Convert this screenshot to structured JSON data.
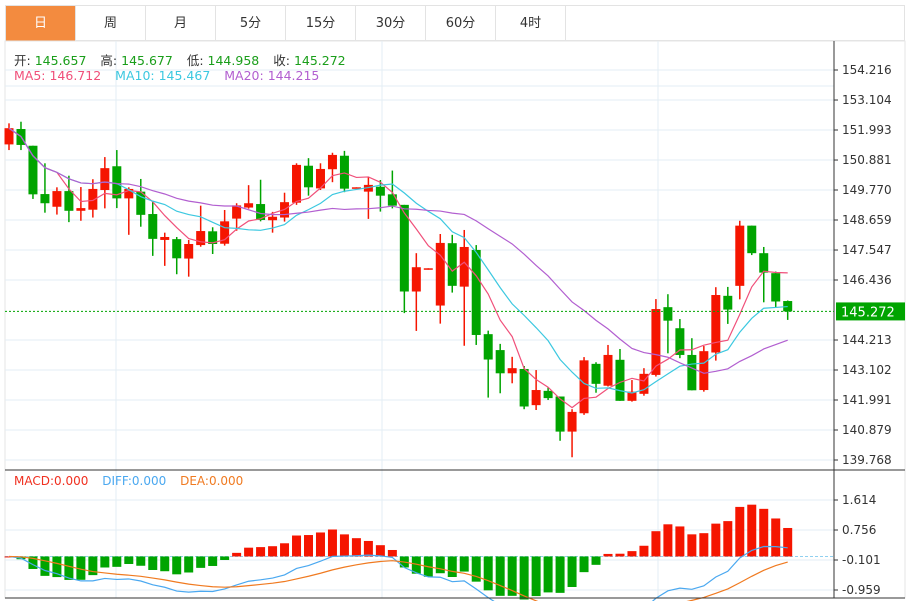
{
  "tabs": [
    {
      "label": "日",
      "active": true
    },
    {
      "label": "周"
    },
    {
      "label": "月"
    },
    {
      "label": "5分"
    },
    {
      "label": "15分"
    },
    {
      "label": "30分"
    },
    {
      "label": "60分"
    },
    {
      "label": "4时"
    }
  ],
  "ohlc_info": {
    "open_label": "开:",
    "open": "145.657",
    "high_label": "高:",
    "high": "145.677",
    "low_label": "低:",
    "low": "144.958",
    "close_label": "收:",
    "close": "145.272"
  },
  "ma_info": {
    "ma5": "MA5: 146.712",
    "ma10": "MA10: 145.467",
    "ma20": "MA20: 144.215"
  },
  "macd_info": {
    "macd": "MACD:0.000",
    "diff": "DIFF:0.000",
    "dea": "DEA:0.000"
  },
  "colors": {
    "up": "#f51500",
    "down": "#00a400",
    "ma5": "#f0507a",
    "ma10": "#3cc8e0",
    "ma20": "#b25fd0",
    "diff": "#4aa8f0",
    "dea": "#f07a20",
    "tab_active": "#f38b3f",
    "current": "#00a400"
  },
  "chart_data": {
    "type": "candlestick",
    "price_ticks": [
      "154.216",
      "153.104",
      "151.993",
      "150.881",
      "149.770",
      "148.659",
      "147.547",
      "146.436",
      "144.213",
      "143.102",
      "141.991",
      "140.879",
      "139.768"
    ],
    "price_range": [
      139.768,
      154.216
    ],
    "current_price": "145.272",
    "macd_ticks": [
      "1.614",
      "0.756",
      "-0.101",
      "-0.959"
    ],
    "macd_range": [
      -0.959,
      1.614
    ],
    "candles": [
      [
        151.46,
        152.24,
        151.25,
        152.06
      ],
      [
        152.03,
        152.3,
        151.25,
        151.44
      ],
      [
        151.41,
        151.41,
        149.44,
        149.61
      ],
      [
        149.62,
        150.76,
        148.93,
        149.28
      ],
      [
        149.15,
        149.87,
        148.86,
        149.73
      ],
      [
        149.73,
        150.3,
        148.58,
        149.0
      ],
      [
        149.0,
        149.88,
        148.63,
        149.1
      ],
      [
        149.04,
        150.17,
        148.75,
        149.81
      ],
      [
        149.77,
        150.99,
        149.09,
        150.58
      ],
      [
        150.65,
        151.25,
        149.1,
        149.46
      ],
      [
        149.46,
        149.87,
        148.11,
        149.81
      ],
      [
        149.71,
        150.18,
        148.41,
        148.85
      ],
      [
        148.88,
        149.34,
        147.33,
        147.96
      ],
      [
        147.92,
        148.19,
        146.96,
        148.03
      ],
      [
        147.95,
        148.03,
        146.65,
        147.24
      ],
      [
        147.23,
        147.92,
        146.56,
        147.77
      ],
      [
        147.73,
        149.19,
        147.67,
        148.25
      ],
      [
        148.24,
        148.39,
        147.4,
        147.77
      ],
      [
        147.78,
        149.03,
        147.71,
        148.61
      ],
      [
        148.71,
        149.28,
        148.26,
        149.2
      ],
      [
        149.12,
        149.95,
        149.08,
        149.28
      ],
      [
        149.25,
        150.15,
        148.61,
        148.66
      ],
      [
        148.65,
        148.96,
        148.19,
        148.78
      ],
      [
        148.75,
        149.67,
        148.6,
        149.32
      ],
      [
        149.3,
        150.76,
        149.22,
        150.7
      ],
      [
        150.67,
        150.95,
        149.56,
        149.87
      ],
      [
        149.83,
        150.76,
        149.77,
        150.55
      ],
      [
        150.54,
        151.15,
        150.06,
        151.07
      ],
      [
        151.04,
        151.22,
        149.69,
        149.82
      ],
      [
        149.85,
        149.87,
        149.85,
        149.87
      ],
      [
        149.71,
        150.26,
        148.7,
        149.96
      ],
      [
        149.89,
        150.14,
        148.97,
        149.56
      ],
      [
        149.61,
        150.49,
        149.09,
        149.19
      ],
      [
        149.22,
        149.22,
        145.21,
        146.01
      ],
      [
        146.01,
        147.43,
        144.55,
        146.91
      ],
      [
        146.82,
        146.87,
        146.82,
        146.87
      ],
      [
        145.49,
        148.14,
        144.82,
        147.81
      ],
      [
        147.8,
        148.11,
        145.97,
        146.22
      ],
      [
        146.19,
        148.29,
        144.0,
        147.66
      ],
      [
        147.55,
        147.73,
        144.03,
        144.4
      ],
      [
        144.43,
        144.56,
        142.08,
        143.49
      ],
      [
        143.84,
        144.07,
        142.24,
        142.98
      ],
      [
        142.98,
        143.59,
        142.61,
        143.17
      ],
      [
        143.14,
        143.25,
        141.65,
        141.75
      ],
      [
        141.8,
        143.1,
        141.62,
        142.36
      ],
      [
        142.33,
        142.45,
        141.99,
        142.06
      ],
      [
        142.12,
        142.12,
        140.48,
        140.82
      ],
      [
        140.82,
        141.65,
        139.87,
        141.55
      ],
      [
        141.5,
        143.58,
        141.44,
        143.46
      ],
      [
        143.33,
        143.39,
        142.26,
        142.59
      ],
      [
        142.52,
        144.03,
        142.49,
        143.66
      ],
      [
        143.48,
        143.88,
        141.96,
        141.96
      ],
      [
        141.96,
        142.73,
        141.93,
        142.3
      ],
      [
        142.22,
        143.17,
        142.15,
        142.96
      ],
      [
        142.92,
        145.73,
        142.86,
        145.36
      ],
      [
        145.43,
        145.91,
        143.72,
        144.93
      ],
      [
        144.65,
        144.99,
        143.54,
        143.66
      ],
      [
        143.66,
        144.28,
        142.35,
        142.35
      ],
      [
        142.36,
        143.99,
        142.3,
        143.8
      ],
      [
        143.75,
        146.17,
        143.45,
        145.88
      ],
      [
        145.85,
        146.18,
        144.81,
        145.34
      ],
      [
        146.22,
        148.63,
        145.72,
        148.45
      ],
      [
        148.45,
        148.45,
        147.36,
        147.43
      ],
      [
        147.43,
        147.66,
        145.61,
        146.71
      ],
      [
        146.69,
        146.75,
        145.43,
        145.64
      ],
      [
        145.657,
        145.677,
        144.958,
        145.272
      ]
    ]
  }
}
